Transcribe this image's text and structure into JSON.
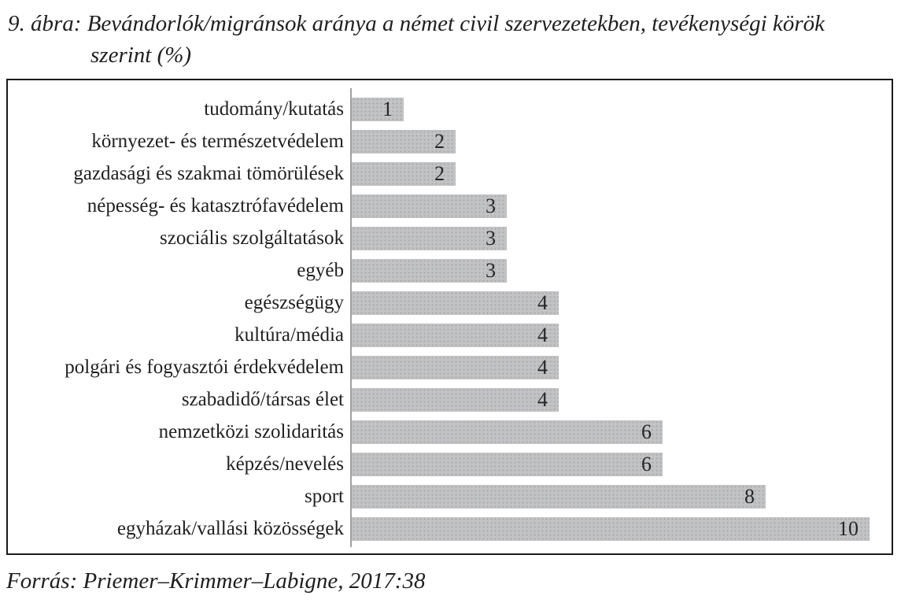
{
  "figure": {
    "caption_line1": "9. ábra: Bevándorlók/migránsok aránya a német civil szervezetekben, tevékenységi körök",
    "caption_line2": "szerint (%)",
    "source": "Forrás: Priemer–Krimmer–Labigne, 2017:38"
  },
  "chart_data": {
    "type": "bar",
    "orientation": "horizontal",
    "title": "9. ábra: Bevándorlók/migránsok aránya a német civil szervezetekben, tevékenységi körök szerint (%)",
    "xlabel": "",
    "ylabel": "",
    "xlim": [
      0,
      10.4
    ],
    "grid": false,
    "legend": false,
    "value_label_position": "inside-end",
    "bar_color": "#c2c3c5",
    "axis_line_color": "#a0a0a0",
    "frame_border_color": "#1b1b1b",
    "text_color": "#1f1f1f",
    "categories": [
      "tudomány/kutatás",
      "környezet- és természetvédelem",
      "gazdasági és szakmai tömörülések",
      "népesség- és katasztrófavédelem",
      "szociális szolgáltatások",
      "egyéb",
      "egészségügy",
      "kultúra/média",
      "polgári és fogyasztói érdekvédelem",
      "szabadidő/társas élet",
      "nemzetközi szolidaritás",
      "képzés/nevelés",
      "sport",
      "egyházak/vallási közösségek"
    ],
    "values": [
      1,
      2,
      2,
      3,
      3,
      3,
      4,
      4,
      4,
      4,
      6,
      6,
      8,
      10
    ]
  }
}
